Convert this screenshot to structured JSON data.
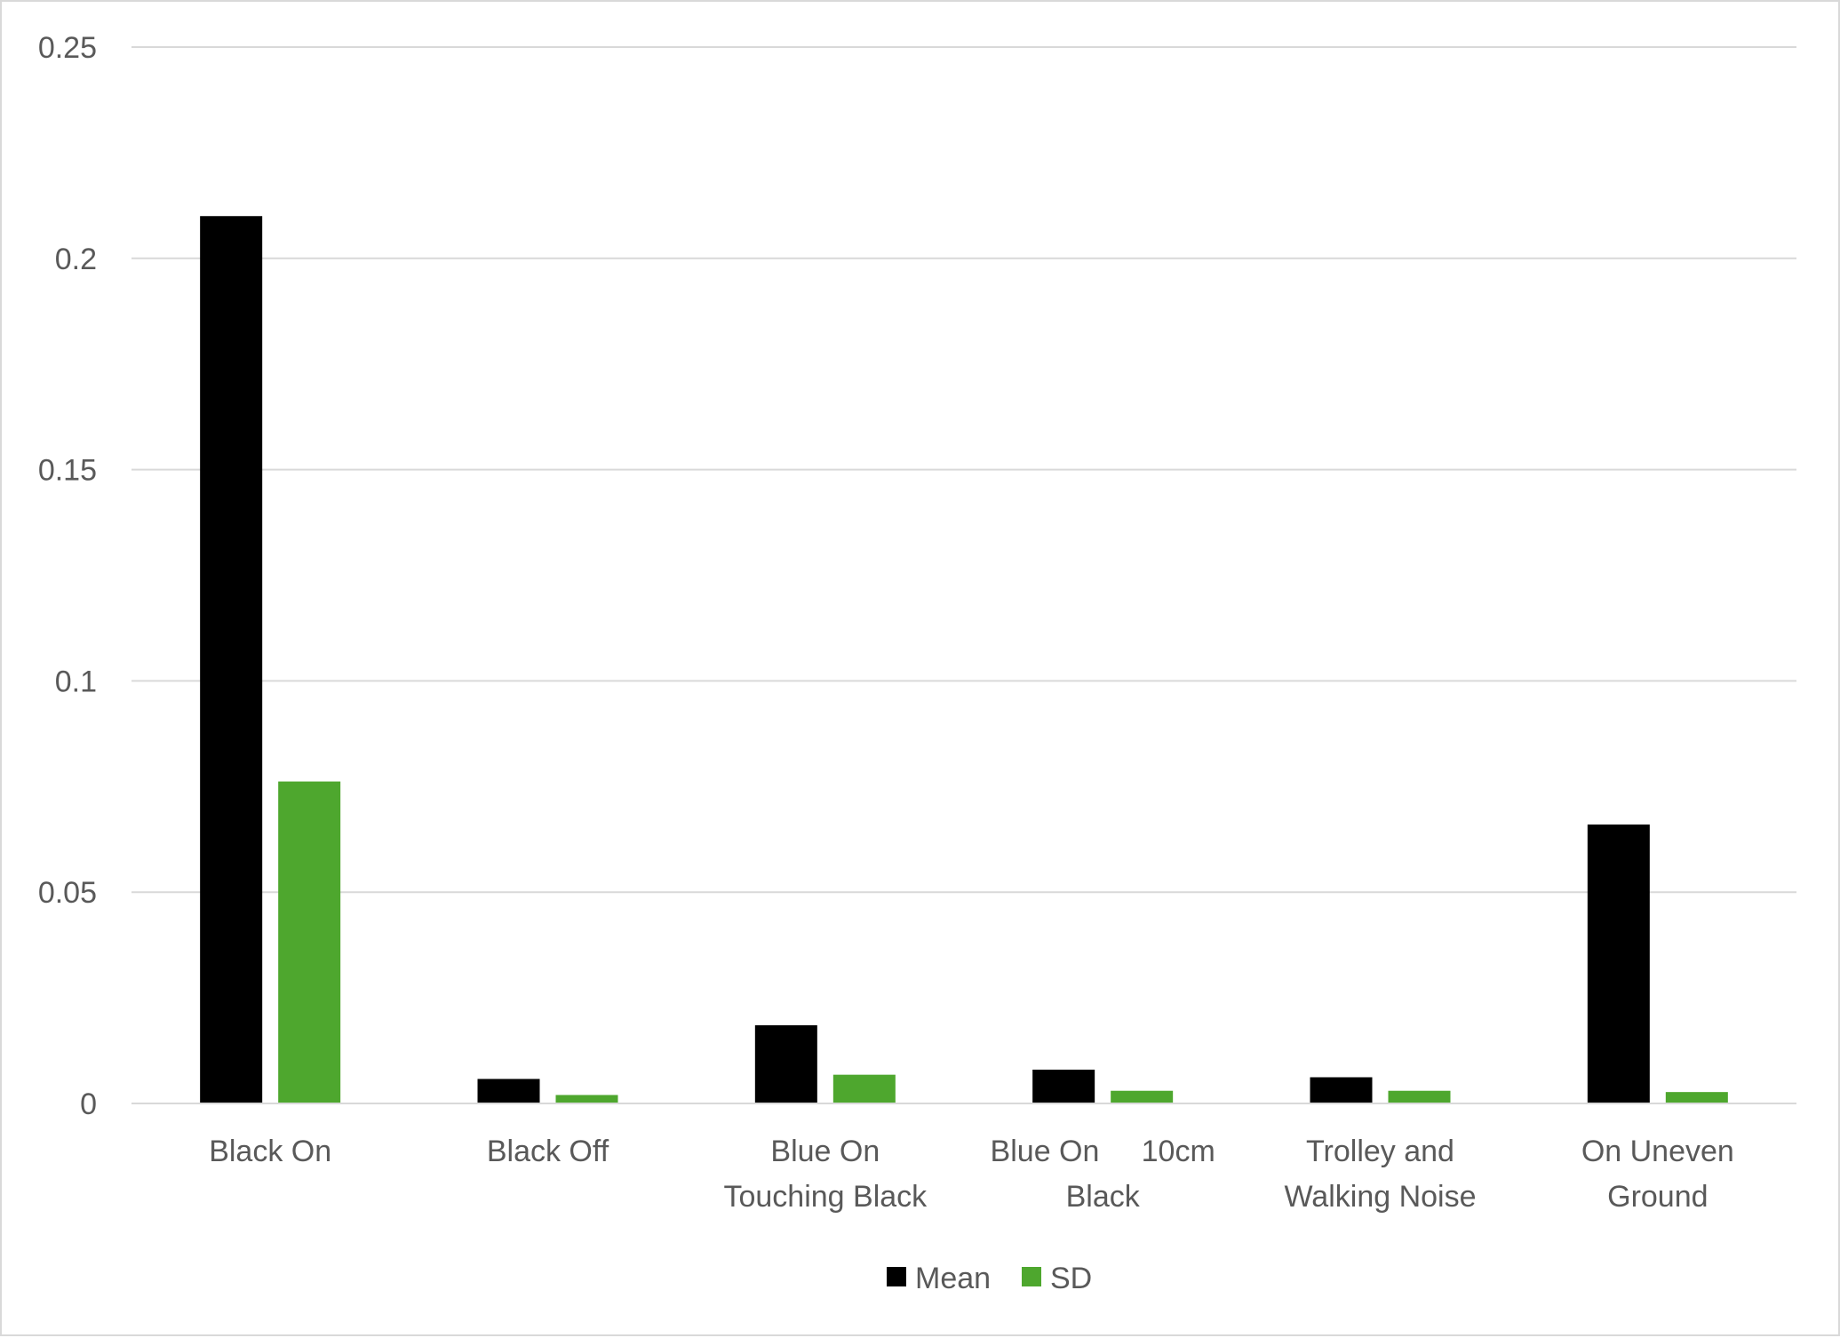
{
  "chart_data": {
    "type": "bar",
    "title": "",
    "xlabel": "",
    "ylabel": "",
    "categories": [
      [
        "Black On"
      ],
      [
        "Black Off"
      ],
      [
        "Blue On",
        "Touching Black"
      ],
      [
        "Blue On     10cm",
        "Black"
      ],
      [
        "Trolley and",
        "Walking Noise"
      ],
      [
        "On Uneven",
        "Ground"
      ]
    ],
    "series": [
      {
        "name": "Mean",
        "color": "#000000",
        "values": [
          0.21,
          0.0058,
          0.0185,
          0.008,
          0.0062,
          0.066
        ]
      },
      {
        "name": "SD",
        "color": "#4ea72e",
        "values": [
          0.0762,
          0.002,
          0.0068,
          0.003,
          0.003,
          0.0027
        ]
      }
    ],
    "ylim": [
      0,
      0.25
    ],
    "yticks": [
      0,
      0.05,
      0.1,
      0.15,
      0.2,
      0.25
    ],
    "ytick_labels": [
      "0",
      "0.05",
      "0.1",
      "0.15",
      "0.2",
      "0.25"
    ],
    "grid": true,
    "legend_position": "bottom-center"
  }
}
